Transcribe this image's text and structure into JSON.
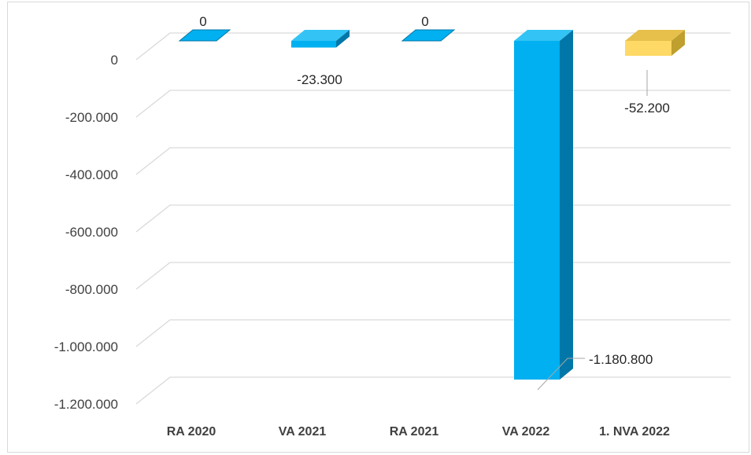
{
  "chart_data": {
    "type": "bar",
    "categories": [
      "RA 2020",
      "VA 2021",
      "RA 2021",
      "VA 2022",
      "1. NVA 2022"
    ],
    "values": [
      0,
      -23300,
      0,
      -1180800,
      -52200
    ],
    "data_labels": [
      "0",
      "-23.300",
      "0",
      "-1.180.800",
      "-52.200"
    ],
    "yticks": [
      0,
      -200000,
      -400000,
      -600000,
      -800000,
      -1000000,
      -1200000
    ],
    "ytick_labels": [
      "0",
      "-200.000",
      "-400.000",
      "-600.000",
      "-800.000",
      "-1.000.000",
      "-1.200.000"
    ],
    "ylim": [
      -1200000,
      0
    ],
    "grid": true,
    "legend": "none",
    "colors": {
      "bar_blue_front": "#00b0f0",
      "bar_blue_top": "#33c4f5",
      "bar_blue_side": "#0077a8",
      "bar_yellow_front": "#ffd966",
      "bar_yellow_top": "#e6c04a",
      "bar_yellow_side": "#bf9f2e",
      "grid": "#d9d9d9",
      "text": "#404040"
    },
    "bar_colors": [
      "blue",
      "blue",
      "blue",
      "blue",
      "yellow"
    ]
  }
}
